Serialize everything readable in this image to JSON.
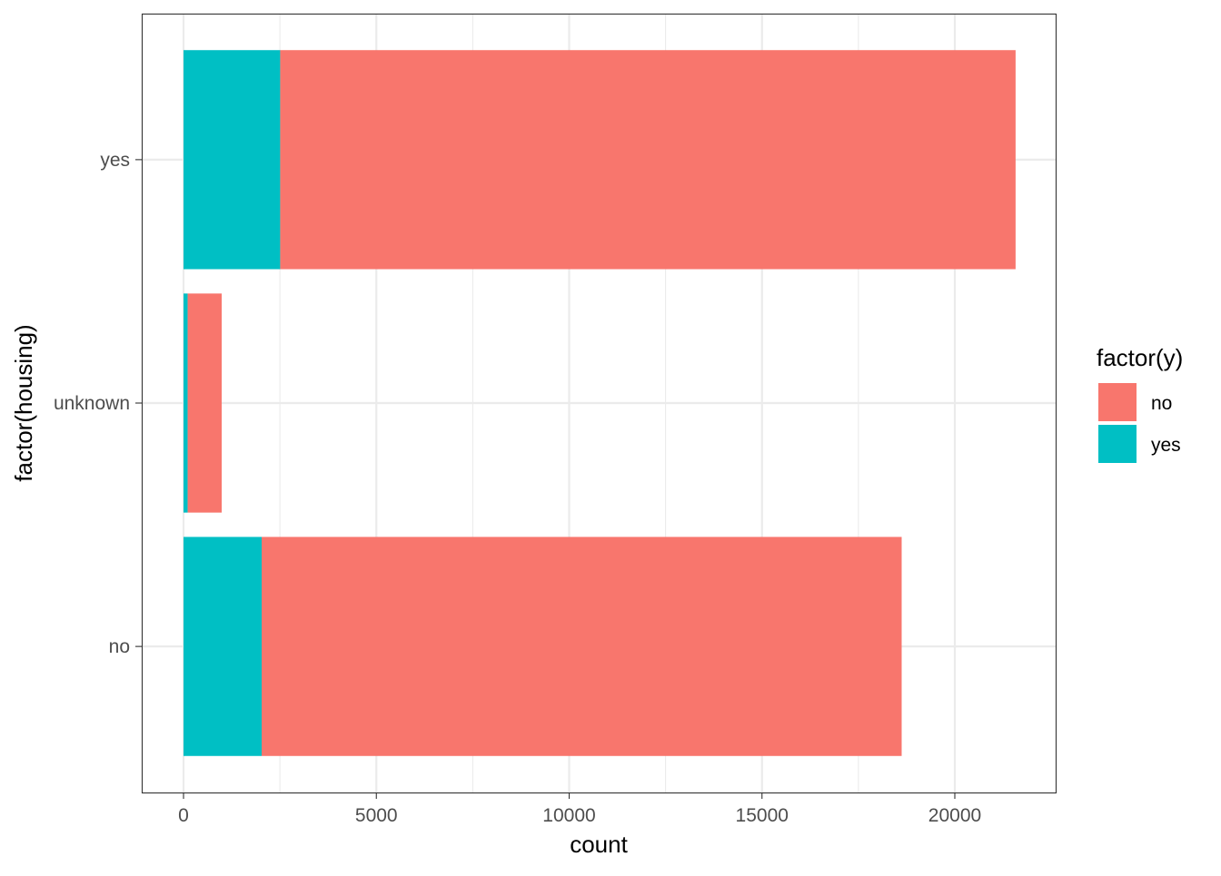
{
  "chart_data": {
    "type": "bar",
    "orientation": "horizontal",
    "stacked": true,
    "xlabel": "count",
    "ylabel": "factor(housing)",
    "categories": [
      "no",
      "unknown",
      "yes"
    ],
    "series": [
      {
        "name": "no",
        "values": [
          16596,
          883,
          19069
        ],
        "color": "#F8766D"
      },
      {
        "name": "yes",
        "values": [
          2026,
          107,
          2507
        ],
        "color": "#00BFC4"
      }
    ],
    "xlim": [
      -1084,
      22615
    ],
    "xticks": [
      0,
      5000,
      10000,
      15000,
      20000
    ],
    "xtick_labels": [
      "0",
      "5000",
      "10000",
      "15000",
      "20000"
    ],
    "grid": true,
    "legend": {
      "title": "factor(y)",
      "position": "right",
      "entries": [
        "no",
        "yes"
      ]
    }
  }
}
